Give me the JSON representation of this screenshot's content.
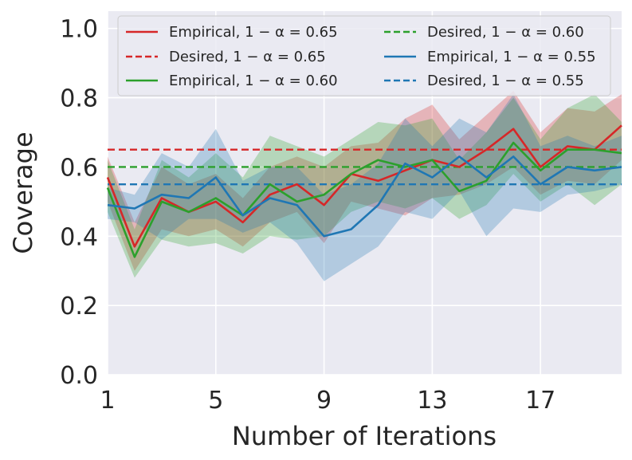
{
  "chart_data": {
    "type": "line",
    "title": "",
    "xlabel": "Number of Iterations",
    "ylabel": "Coverage",
    "xlim": [
      1,
      20
    ],
    "ylim": [
      0.0,
      1.05
    ],
    "grid": true,
    "legend_position": "top",
    "xticks": [
      1,
      5,
      9,
      13,
      17
    ],
    "xtick_labels": [
      "1",
      "5",
      "9",
      "13",
      "17"
    ],
    "yticks": [
      0.0,
      0.2,
      0.4,
      0.6,
      0.8,
      1.0
    ],
    "ytick_labels": [
      "0.0",
      "0.2",
      "0.4",
      "0.6",
      "0.8",
      "1.0"
    ],
    "x": [
      1,
      2,
      3,
      4,
      5,
      6,
      7,
      8,
      9,
      10,
      11,
      12,
      13,
      14,
      15,
      16,
      17,
      18,
      19,
      20
    ],
    "series": [
      {
        "name": "Empirical, 1 − α = 0.65",
        "kind": "empirical",
        "color": "#d62728",
        "values": [
          0.57,
          0.37,
          0.51,
          0.47,
          0.5,
          0.44,
          0.52,
          0.55,
          0.49,
          0.58,
          0.56,
          0.59,
          0.62,
          0.6,
          0.65,
          0.71,
          0.6,
          0.66,
          0.65,
          0.72
        ],
        "lower": [
          0.5,
          0.3,
          0.42,
          0.4,
          0.42,
          0.37,
          0.44,
          0.47,
          0.38,
          0.5,
          0.48,
          0.46,
          0.51,
          0.52,
          0.55,
          0.6,
          0.52,
          0.56,
          0.55,
          0.62
        ],
        "upper": [
          0.63,
          0.44,
          0.6,
          0.55,
          0.58,
          0.51,
          0.6,
          0.63,
          0.6,
          0.66,
          0.67,
          0.74,
          0.78,
          0.68,
          0.75,
          0.82,
          0.7,
          0.77,
          0.76,
          0.81
        ]
      },
      {
        "name": "Desired, 1 − α = 0.65",
        "kind": "desired",
        "color": "#d62728",
        "value": 0.65
      },
      {
        "name": "Empirical, 1 − α = 0.60",
        "kind": "empirical",
        "color": "#2ca02c",
        "values": [
          0.54,
          0.34,
          0.5,
          0.47,
          0.51,
          0.46,
          0.55,
          0.5,
          0.52,
          0.58,
          0.62,
          0.6,
          0.62,
          0.53,
          0.56,
          0.67,
          0.59,
          0.65,
          0.65,
          0.64
        ],
        "lower": [
          0.47,
          0.28,
          0.39,
          0.37,
          0.38,
          0.35,
          0.4,
          0.39,
          0.4,
          0.47,
          0.5,
          0.48,
          0.51,
          0.45,
          0.49,
          0.58,
          0.5,
          0.55,
          0.49,
          0.55
        ],
        "upper": [
          0.62,
          0.42,
          0.62,
          0.57,
          0.64,
          0.57,
          0.69,
          0.66,
          0.63,
          0.68,
          0.73,
          0.72,
          0.74,
          0.62,
          0.7,
          0.8,
          0.68,
          0.77,
          0.81,
          0.73
        ]
      },
      {
        "name": "Desired, 1 − α = 0.60",
        "kind": "desired",
        "color": "#2ca02c",
        "value": 0.6
      },
      {
        "name": "Empirical, 1 − α = 0.55",
        "kind": "empirical",
        "color": "#1f77b4",
        "values": [
          0.49,
          0.48,
          0.52,
          0.51,
          0.57,
          0.46,
          0.51,
          0.49,
          0.4,
          0.42,
          0.49,
          0.61,
          0.57,
          0.63,
          0.57,
          0.63,
          0.55,
          0.6,
          0.59,
          0.6
        ],
        "lower": [
          0.45,
          0.44,
          0.39,
          0.45,
          0.45,
          0.41,
          0.44,
          0.38,
          0.27,
          0.32,
          0.37,
          0.47,
          0.45,
          0.53,
          0.4,
          0.48,
          0.47,
          0.52,
          0.53,
          0.55
        ],
        "upper": [
          0.54,
          0.52,
          0.64,
          0.6,
          0.71,
          0.56,
          0.6,
          0.6,
          0.52,
          0.55,
          0.61,
          0.74,
          0.66,
          0.74,
          0.7,
          0.81,
          0.66,
          0.69,
          0.66,
          0.69
        ]
      },
      {
        "name": "Desired, 1 − α = 0.55",
        "kind": "desired",
        "color": "#1f77b4",
        "value": 0.55
      }
    ],
    "legend_order": [
      0,
      1,
      2,
      3,
      4,
      5
    ]
  }
}
